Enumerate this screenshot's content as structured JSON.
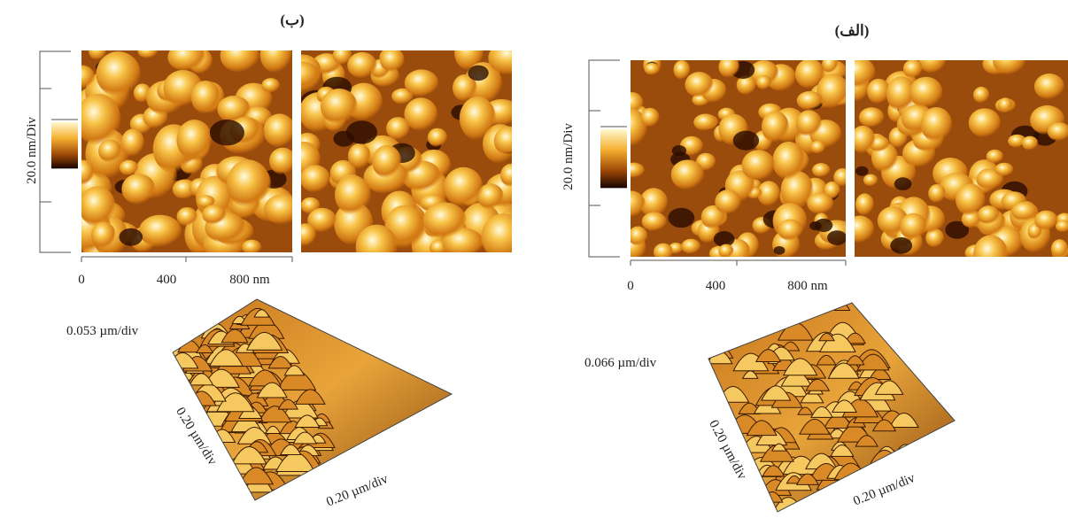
{
  "panels": [
    {
      "label": "(ب)",
      "color_scale": "20.0 nm/Div",
      "x_ticks": [
        "0",
        "400",
        "800 nm"
      ],
      "z_scale": "0.053 µm/div",
      "y_scale": "0.20 µm/div",
      "x_scale": "0.20 µm/div"
    },
    {
      "label": "(الف)",
      "color_scale": "20.0 nm/Div",
      "x_ticks": [
        "0",
        "400",
        "800 nm"
      ],
      "z_scale": "0.066 µm/div",
      "y_scale": "0.20 µm/div",
      "x_scale": "0.20 µm/div"
    }
  ]
}
